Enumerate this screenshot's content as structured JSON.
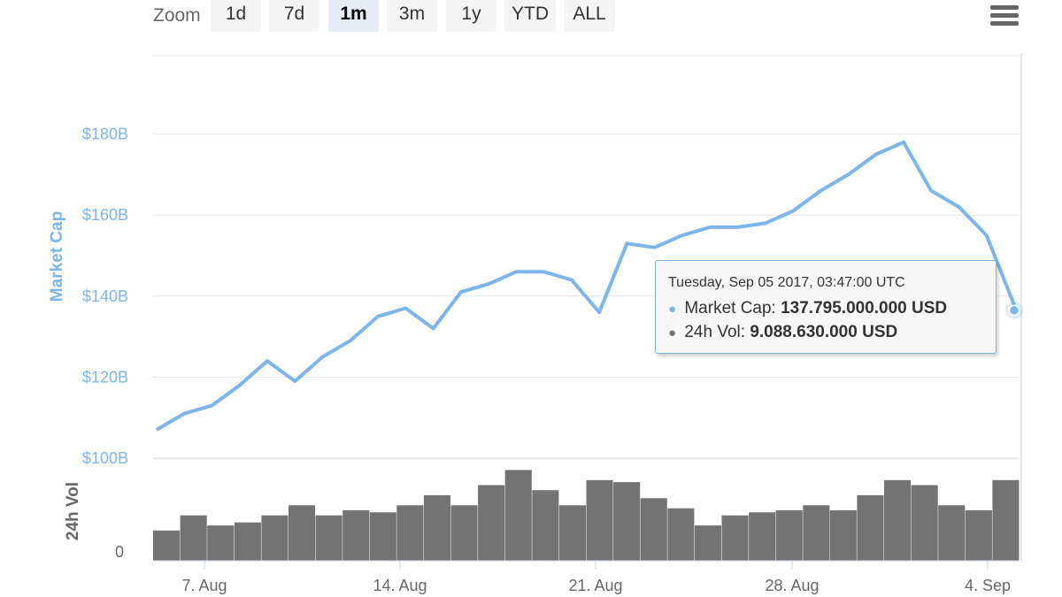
{
  "toolbar": {
    "zoom_label": "Zoom",
    "buttons": [
      "1d",
      "7d",
      "1m",
      "3m",
      "1y",
      "YTD",
      "ALL"
    ],
    "active": "1m"
  },
  "tooltip": {
    "header": "Tuesday, Sep 05 2017, 03:47:00 UTC",
    "rows": [
      {
        "name": "Market Cap",
        "value": "137.795.000.000 USD",
        "color": "#7cb5ec"
      },
      {
        "name": "24h Vol",
        "value": "9.088.630.000 USD",
        "color": "#737373"
      }
    ]
  },
  "colors": {
    "market_cap": "#7cb5ec",
    "volume": "#737373",
    "grid": "#e6e6e6"
  },
  "chart_data": {
    "type": "line",
    "x_ticks": [
      "7. Aug",
      "14. Aug",
      "21. Aug",
      "28. Aug",
      "4. Sep"
    ],
    "series": [
      {
        "name": "Market Cap",
        "type": "line",
        "y_axis": "Market Cap",
        "x": [
          "Aug 5",
          "Aug 6",
          "Aug 7",
          "Aug 8",
          "Aug 9",
          "Aug 10",
          "Aug 11",
          "Aug 12",
          "Aug 13",
          "Aug 14",
          "Aug 15",
          "Aug 16",
          "Aug 17",
          "Aug 18",
          "Aug 19",
          "Aug 20",
          "Aug 21",
          "Aug 22",
          "Aug 23",
          "Aug 24",
          "Aug 25",
          "Aug 26",
          "Aug 27",
          "Aug 28",
          "Aug 29",
          "Aug 30",
          "Aug 31",
          "Sep 1",
          "Sep 2",
          "Sep 3",
          "Sep 4",
          "Sep 5"
        ],
        "values": [
          107,
          111,
          113,
          118,
          124,
          119,
          125,
          129,
          135,
          137,
          132,
          141,
          143,
          146,
          146,
          144,
          136,
          153,
          152,
          155,
          157,
          157,
          158,
          161,
          166,
          170,
          175,
          178,
          166,
          162,
          155,
          137.8
        ]
      },
      {
        "name": "24h Vol",
        "type": "column",
        "y_axis": "24h Vol",
        "values": [
          0.3,
          0.45,
          0.35,
          0.38,
          0.45,
          0.55,
          0.45,
          0.5,
          0.48,
          0.55,
          0.65,
          0.55,
          0.75,
          0.9,
          0.7,
          0.55,
          0.8,
          0.78,
          0.62,
          0.52,
          0.35,
          0.45,
          0.48,
          0.5,
          0.55,
          0.5,
          0.65,
          0.8,
          0.75,
          0.55,
          0.5,
          0.8
        ]
      }
    ],
    "y_axes": [
      {
        "title": "Market Cap",
        "ticks": [
          "$100B",
          "$120B",
          "$140B",
          "$160B",
          "$180B"
        ],
        "range": [
          100,
          200
        ]
      },
      {
        "title": "24h Vol",
        "ticks": [
          "0"
        ],
        "range": [
          0,
          1
        ]
      }
    ],
    "grid": true,
    "highlight_point": {
      "series": "Market Cap",
      "index": 31
    }
  }
}
